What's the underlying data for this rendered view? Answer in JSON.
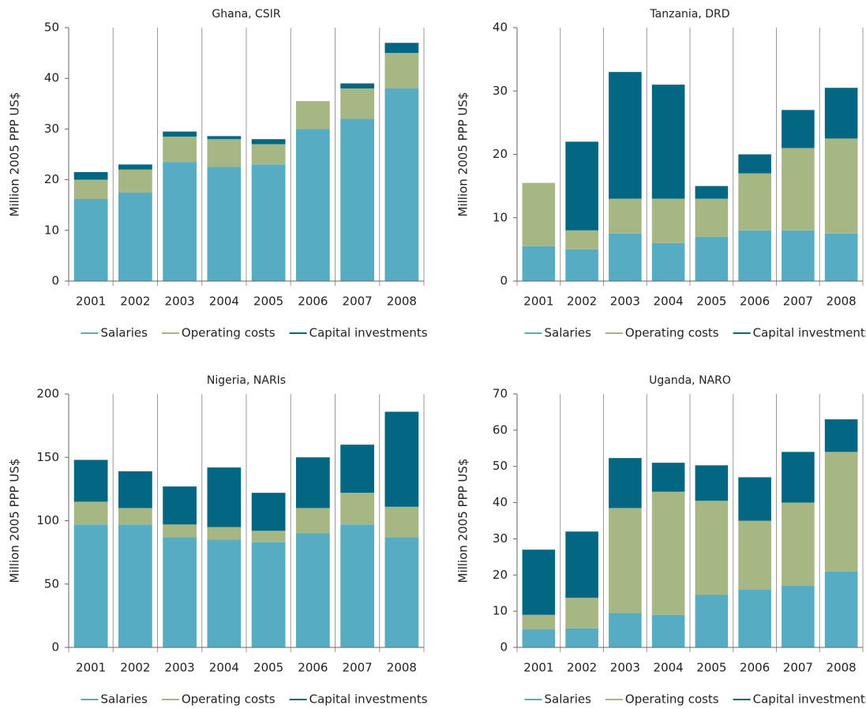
{
  "chart_data": [
    {
      "type": "bar",
      "stacked": true,
      "title": "Ghana, CSIR",
      "y_label": "Million 2005 PPP US$",
      "categories": [
        "2001",
        "2002",
        "2003",
        "2004",
        "2005",
        "2006",
        "2007",
        "2008"
      ],
      "series": [
        {
          "name": "Salaries",
          "color": "#56adc3",
          "values": [
            16.2,
            17.5,
            23.5,
            22.5,
            23,
            30,
            32,
            38
          ]
        },
        {
          "name": "Operating costs",
          "color": "#a6b784",
          "values": [
            3.8,
            4.5,
            5,
            5.5,
            4,
            5.5,
            6,
            7
          ]
        },
        {
          "name": "Capital investments",
          "color": "#036784",
          "values": [
            1.5,
            1,
            1,
            0.6,
            1,
            0,
            1,
            2
          ]
        }
      ],
      "ylim": [
        0,
        50
      ],
      "yticks": [
        0,
        10,
        20,
        30,
        40,
        50
      ]
    },
    {
      "type": "bar",
      "stacked": true,
      "title": "Tanzania, DRD",
      "y_label": "Million 2005 PPP US$",
      "categories": [
        "2001",
        "2002",
        "2003",
        "2004",
        "2005",
        "2006",
        "2007",
        "2008"
      ],
      "series": [
        {
          "name": "Salaries",
          "color": "#56adc3",
          "values": [
            5.5,
            5,
            7.5,
            6,
            7,
            8,
            8,
            7.5
          ]
        },
        {
          "name": "Operating costs",
          "color": "#a6b784",
          "values": [
            10,
            3,
            5.5,
            7,
            6,
            9,
            13,
            15
          ]
        },
        {
          "name": "Capital investments",
          "color": "#036784",
          "values": [
            0,
            14,
            20,
            18,
            2,
            3,
            6,
            8
          ]
        }
      ],
      "ylim": [
        0,
        40
      ],
      "yticks": [
        0,
        10,
        20,
        30,
        40
      ]
    },
    {
      "type": "bar",
      "stacked": true,
      "title": "Nigeria, NARIs",
      "y_label": "Million 2005 PPP US$",
      "categories": [
        "2001",
        "2002",
        "2003",
        "2004",
        "2005",
        "2006",
        "2007",
        "2008"
      ],
      "series": [
        {
          "name": "Salaries",
          "color": "#56adc3",
          "values": [
            97,
            97,
            87,
            85,
            83,
            90,
            97,
            87
          ]
        },
        {
          "name": "Operating costs",
          "color": "#a6b784",
          "values": [
            18,
            13,
            10,
            10,
            9,
            20,
            25,
            24
          ]
        },
        {
          "name": "Capital investments",
          "color": "#036784",
          "values": [
            33,
            29,
            30,
            47,
            30,
            40,
            38,
            75
          ]
        }
      ],
      "ylim": [
        0,
        200
      ],
      "yticks": [
        0,
        50,
        100,
        150,
        200
      ]
    },
    {
      "type": "bar",
      "stacked": true,
      "title": "Uganda, NARO",
      "y_label": "Million 2005 PPP US$",
      "categories": [
        "2001",
        "2002",
        "2003",
        "2004",
        "2005",
        "2006",
        "2007",
        "2008"
      ],
      "series": [
        {
          "name": "Salaries",
          "color": "#56adc3",
          "values": [
            5,
            5.3,
            9.5,
            9,
            14.5,
            16,
            17,
            21
          ]
        },
        {
          "name": "Operating costs",
          "color": "#a6b784",
          "values": [
            4,
            8.4,
            29,
            34,
            26,
            19,
            23,
            33
          ]
        },
        {
          "name": "Capital investments",
          "color": "#036784",
          "values": [
            18,
            18.3,
            13.8,
            8,
            9.8,
            12,
            14,
            9
          ]
        }
      ],
      "ylim": [
        0,
        70
      ],
      "yticks": [
        0,
        10,
        20,
        30,
        40,
        50,
        60,
        70
      ]
    }
  ]
}
